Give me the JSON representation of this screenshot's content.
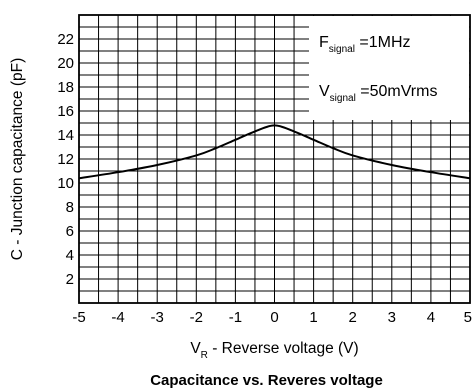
{
  "chart_data": {
    "type": "line",
    "title": "Capacitance vs. Reveres voltage",
    "xlabel": {
      "main": "V",
      "sub": "R",
      "rest": " - Reverse voltage (V)"
    },
    "ylabel": "C - Junction capacitance (pF)",
    "xlim": [
      -5,
      5
    ],
    "ylim": [
      0,
      24
    ],
    "grid": true,
    "x_ticks": [
      "-5",
      "-4",
      "-3",
      "-2",
      "-1",
      "0",
      "1",
      "2",
      "3",
      "4",
      "5"
    ],
    "y_ticks": [
      "2",
      "4",
      "6",
      "8",
      "10",
      "12",
      "14",
      "16",
      "18",
      "20",
      "22"
    ],
    "annotations": [
      {
        "main": "F",
        "sub": "signal",
        "rest": " =1MHz"
      },
      {
        "main": "V",
        "sub": "signal",
        "rest": " =50mVrms"
      }
    ],
    "series": [
      {
        "x": [
          -5,
          -4,
          -3,
          -2,
          -1.5,
          -1,
          -0.5,
          0,
          0.5,
          1,
          1.5,
          2,
          3,
          4,
          5
        ],
        "y": [
          10.4,
          10.9,
          11.5,
          12.3,
          12.9,
          13.6,
          14.3,
          14.8,
          14.3,
          13.6,
          12.9,
          12.3,
          11.5,
          10.9,
          10.4
        ]
      }
    ]
  }
}
